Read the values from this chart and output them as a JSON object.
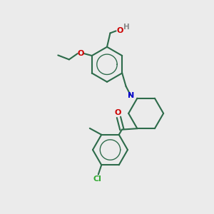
{
  "bg_color": "#ebebeb",
  "bond_color": "#2d6b4a",
  "N_color": "#0000cc",
  "O_color": "#cc0000",
  "Cl_color": "#33aa33",
  "H_color": "#888888",
  "line_width": 1.5,
  "figsize": [
    3.0,
    3.0
  ],
  "dpi": 100,
  "xlim": [
    0,
    10
  ],
  "ylim": [
    0,
    10
  ]
}
